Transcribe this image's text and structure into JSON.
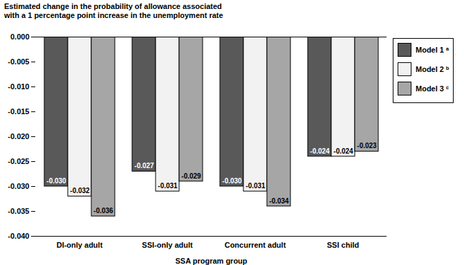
{
  "chart_data": {
    "type": "bar",
    "y_label": "Estimated change in the probability of allowance associated with a 1 percentage point increase in the unemployment rate",
    "x_label": "SSA program group",
    "categories": [
      "DI-only adult",
      "SSI-only adult",
      "Concurrent adult",
      "SSI child"
    ],
    "series": [
      {
        "name": "Model 1 ᵃ",
        "color": "#595959",
        "values": [
          -0.03,
          -0.027,
          -0.03,
          -0.024
        ],
        "value_labels": [
          "-0.030",
          "-0.027",
          "-0.030",
          "-0.024"
        ]
      },
      {
        "name": "Model 2 ᵇ",
        "color": "#f2f2f2",
        "values": [
          -0.032,
          -0.031,
          -0.031,
          -0.024
        ],
        "value_labels": [
          "-0.032",
          "-0.031",
          "-0.031",
          "-0.024"
        ]
      },
      {
        "name": "Model 3 ᶜ",
        "color": "#a6a6a6",
        "values": [
          -0.036,
          -0.029,
          -0.034,
          -0.023
        ],
        "value_labels": [
          "-0.036",
          "-0.029",
          "-0.034",
          "-0.023"
        ]
      }
    ],
    "ylim": [
      -0.04,
      0
    ],
    "yticks": [
      {
        "value": 0,
        "label": "0.000"
      },
      {
        "value": -0.005,
        "label": "-0.005"
      },
      {
        "value": -0.01,
        "label": "-0.010"
      },
      {
        "value": -0.015,
        "label": "-0.015"
      },
      {
        "value": -0.02,
        "label": "-0.020"
      },
      {
        "value": -0.025,
        "label": "-0.025"
      },
      {
        "value": -0.03,
        "label": "-0.030"
      },
      {
        "value": -0.035,
        "label": "-0.035"
      },
      {
        "value": -0.04,
        "label": "-0.040"
      }
    ],
    "grid": false,
    "legend": "right",
    "data_labels": true
  }
}
